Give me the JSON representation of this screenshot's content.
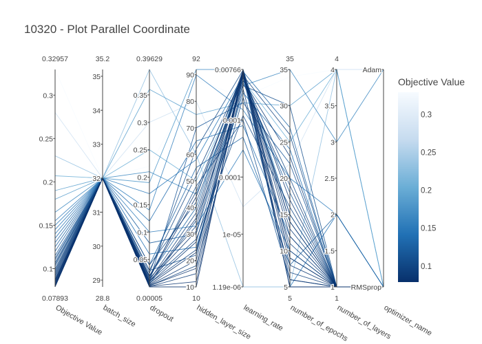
{
  "chart_data": {
    "type": "parallel_coordinates",
    "title": "10320 - Plot Parallel Coordinate",
    "colorbar": {
      "title": "Objective Value",
      "range": [
        0.07893,
        0.32957
      ],
      "ticks": [
        "0.1",
        "0.15",
        "0.2",
        "0.25",
        "0.3"
      ],
      "tick_values": [
        0.1,
        0.15,
        0.2,
        0.25,
        0.3
      ],
      "colorscale": [
        "#08306b",
        "#2171b5",
        "#6baed6",
        "#c6dbef",
        "#f7fbff"
      ]
    },
    "axes": [
      {
        "label": "Objective Value",
        "top_label": "0.32957",
        "bottom_label": "0.07893",
        "range": [
          0.07893,
          0.32957
        ],
        "scale": "linear",
        "ticks": [
          "0.1",
          "0.15",
          "0.2",
          "0.25",
          "0.3"
        ],
        "tick_values": [
          0.1,
          0.15,
          0.2,
          0.25,
          0.3
        ]
      },
      {
        "label": "batch_size",
        "top_label": "35.2",
        "bottom_label": "28.8",
        "range": [
          28.8,
          35.2
        ],
        "scale": "linear",
        "ticks": [
          "29",
          "30",
          "31",
          "32",
          "33",
          "34",
          "35"
        ],
        "tick_values": [
          29,
          30,
          31,
          32,
          33,
          34,
          35
        ]
      },
      {
        "label": "dropout",
        "top_label": "0.39629",
        "bottom_label": "0.00005",
        "range": [
          5e-05,
          0.39629
        ],
        "scale": "linear",
        "ticks": [
          "0.05",
          "0.1",
          "0.15",
          "0.2",
          "0.25",
          "0.3",
          "0.35"
        ],
        "tick_values": [
          0.05,
          0.1,
          0.15,
          0.2,
          0.25,
          0.3,
          0.35
        ]
      },
      {
        "label": "hidden_layer_size",
        "top_label": "92",
        "bottom_label": "10",
        "range": [
          10,
          92
        ],
        "scale": "linear",
        "ticks": [
          "10",
          "20",
          "30",
          "40",
          "50",
          "60",
          "70",
          "80",
          "90"
        ],
        "tick_values": [
          10,
          20,
          30,
          40,
          50,
          60,
          70,
          80,
          90
        ]
      },
      {
        "label": "learning_rate",
        "top_label": "",
        "bottom_label": "",
        "range": [
          1.19e-06,
          0.00766
        ],
        "scale": "log",
        "ticks": [
          "0.00766",
          "0.001",
          "0.0001",
          "1e-05",
          "1.19e-06"
        ],
        "tick_values": [
          0.00766,
          0.001,
          0.0001,
          1e-05,
          1.19e-06
        ]
      },
      {
        "label": "number_of_epochs",
        "top_label": "35",
        "bottom_label": "5",
        "range": [
          5,
          35
        ],
        "scale": "linear",
        "ticks": [
          "5",
          "10",
          "15",
          "20",
          "25",
          "30",
          "35"
        ],
        "tick_values": [
          5,
          10,
          15,
          20,
          25,
          30,
          35
        ]
      },
      {
        "label": "number_of_layers",
        "top_label": "4",
        "bottom_label": "1",
        "range": [
          1,
          4
        ],
        "scale": "linear",
        "ticks": [
          "1",
          "1.5",
          "2",
          "2.5",
          "3",
          "3.5",
          "4"
        ],
        "tick_values": [
          1,
          1.5,
          2,
          2.5,
          3,
          3.5,
          4
        ]
      },
      {
        "label": "optimizer_name",
        "top_label": "",
        "bottom_label": "",
        "range": [
          0,
          1
        ],
        "scale": "categorical",
        "ticks": [
          "RMSprop",
          "Adam"
        ],
        "tick_values": [
          0,
          1
        ]
      }
    ],
    "trials": [
      [
        0.32957,
        32,
        0.22,
        88,
        0.0025,
        34,
        4,
        1
      ],
      [
        0.28,
        32,
        0.3,
        80,
        3e-05,
        22,
        4,
        1
      ],
      [
        0.23,
        32,
        0.39629,
        60,
        1.19e-06,
        5,
        4,
        0
      ],
      [
        0.207,
        32,
        0.25,
        50,
        0.005,
        25,
        4,
        0
      ],
      [
        0.19,
        32,
        0.36,
        75,
        0.002,
        30,
        4,
        0
      ],
      [
        0.18,
        32,
        0.19,
        92,
        0.00766,
        15,
        1,
        0
      ],
      [
        0.165,
        32,
        0.21,
        45,
        0.004,
        35,
        3,
        1
      ],
      [
        0.155,
        32,
        0.14,
        90,
        0.0015,
        20,
        2,
        0
      ],
      [
        0.15,
        32,
        0.1,
        33,
        0.0003,
        10,
        1,
        0
      ],
      [
        0.145,
        32,
        0.17,
        58,
        0.006,
        5,
        2,
        0
      ],
      [
        0.14,
        32,
        0.06,
        25,
        0.003,
        24,
        1,
        0
      ],
      [
        0.135,
        32,
        0.12,
        65,
        0.0008,
        12,
        1,
        0
      ],
      [
        0.13,
        32,
        0.02,
        40,
        0.007,
        27,
        1,
        0
      ],
      [
        0.125,
        32,
        0.04,
        55,
        0.0005,
        8,
        2,
        0
      ],
      [
        0.12,
        32,
        0.08,
        30,
        0.005,
        18,
        1,
        0
      ],
      [
        0.115,
        32,
        0.01,
        70,
        0.002,
        22,
        1,
        0
      ],
      [
        0.112,
        32,
        0.03,
        22,
        0.0065,
        14,
        1,
        0
      ],
      [
        0.11,
        32,
        0.015,
        48,
        0.001,
        6,
        1,
        0
      ],
      [
        0.107,
        32,
        0.005,
        35,
        0.004,
        30,
        1,
        0
      ],
      [
        0.105,
        32,
        0.025,
        62,
        0.0075,
        9,
        1,
        0
      ],
      [
        0.103,
        32,
        0.01,
        28,
        0.0012,
        16,
        1,
        0
      ],
      [
        0.1,
        32,
        0.04,
        42,
        0.0055,
        20,
        1,
        0
      ],
      [
        0.098,
        32,
        0.002,
        18,
        0.0025,
        11,
        1,
        0
      ],
      [
        0.096,
        32,
        0.03,
        52,
        0.006,
        26,
        1,
        0
      ],
      [
        0.094,
        32,
        0.007,
        24,
        0.0035,
        7,
        1,
        0
      ],
      [
        0.092,
        32,
        0.012,
        38,
        0.007,
        13,
        1,
        0
      ],
      [
        0.09,
        32,
        0.0005,
        15,
        0.0045,
        19,
        1,
        0
      ],
      [
        0.088,
        32,
        0.02,
        46,
        0.0065,
        5,
        1,
        0
      ],
      [
        0.087,
        32,
        0.006,
        27,
        0.005,
        23,
        1,
        0
      ],
      [
        0.086,
        32,
        0.015,
        33,
        0.0072,
        10,
        1,
        0
      ],
      [
        0.085,
        32,
        0.003,
        20,
        0.0058,
        15,
        1,
        0
      ],
      [
        0.084,
        32,
        0.008,
        36,
        0.0068,
        8,
        1,
        0
      ],
      [
        0.083,
        32,
        0.001,
        12,
        0.0062,
        17,
        1,
        0
      ],
      [
        0.082,
        32,
        0.018,
        44,
        0.0074,
        6,
        1,
        0
      ],
      [
        0.081,
        32,
        0.004,
        23,
        0.0066,
        12,
        1,
        0
      ],
      [
        0.08,
        32,
        0.011,
        31,
        0.007,
        9,
        1,
        0
      ],
      [
        0.0795,
        32,
        0.002,
        17,
        0.0076,
        14,
        1,
        0
      ],
      [
        0.07893,
        32,
        5e-05,
        10,
        0.0075,
        5,
        1,
        0
      ]
    ]
  }
}
